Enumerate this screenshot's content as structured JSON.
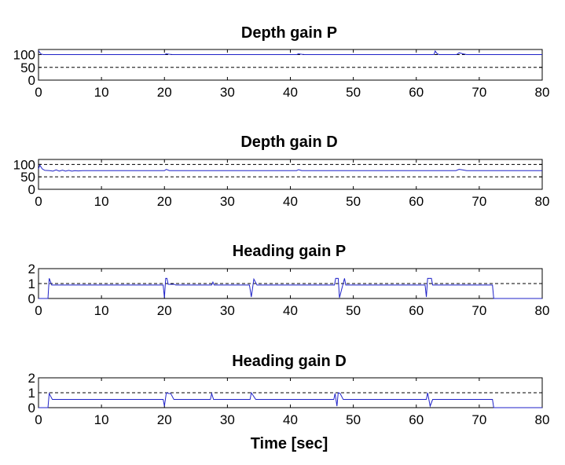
{
  "colors": {
    "series": "#1f22c8",
    "axes": "#000000",
    "background": "#ffffff"
  },
  "xlabel": "Time [sec]",
  "chart_data": [
    {
      "type": "line",
      "title": "Depth gain P",
      "xlim": [
        0,
        80
      ],
      "ylim": [
        0,
        120
      ],
      "xticks": [
        0,
        10,
        20,
        30,
        40,
        50,
        60,
        70,
        80
      ],
      "yticks": [
        0,
        50,
        100
      ],
      "ytick_labels": [
        "0",
        "50",
        "100"
      ],
      "ygrid": [
        50,
        100
      ],
      "xlabel": "",
      "series": [
        {
          "x": [
            0,
            0.15,
            0.4,
            0.8,
            1.2,
            20.0,
            20.3,
            20.8,
            21.3,
            41.0,
            41.3,
            41.8,
            42.3,
            62.8,
            63.0,
            63.3,
            63.6,
            64.5,
            66.4,
            66.8,
            67.4,
            68.0,
            80
          ],
          "y": [
            115,
            110,
            102,
            100,
            100,
            100,
            103,
            101,
            100,
            100,
            103,
            101,
            100,
            100,
            114,
            104,
            100,
            100,
            100,
            107,
            103,
            100,
            100
          ]
        }
      ]
    },
    {
      "type": "line",
      "title": "Depth gain D",
      "xlim": [
        0,
        80
      ],
      "ylim": [
        0,
        120
      ],
      "xticks": [
        0,
        10,
        20,
        30,
        40,
        50,
        60,
        70,
        80
      ],
      "yticks": [
        0,
        50,
        100
      ],
      "ytick_labels": [
        "0",
        "50",
        "100"
      ],
      "ygrid": [
        50,
        100
      ],
      "xlabel": "",
      "series": [
        {
          "x": [
            0,
            0.2,
            0.6,
            1.0,
            1.8,
            2.3,
            2.8,
            3.3,
            3.8,
            4.3,
            4.8,
            5.3,
            5.8,
            6.3,
            7.0,
            10.0,
            20.0,
            20.3,
            20.8,
            41.0,
            41.3,
            41.8,
            66.3,
            66.8,
            67.3,
            68.0,
            80
          ],
          "y": [
            82,
            97,
            82,
            76,
            75,
            73,
            78,
            73,
            77,
            73,
            76,
            73,
            75,
            74,
            75,
            75,
            75,
            80,
            75,
            75,
            79,
            75,
            75,
            80,
            78,
            75,
            75
          ]
        }
      ]
    },
    {
      "type": "line",
      "title": "Heading gain P",
      "xlim": [
        0,
        80
      ],
      "ylim": [
        0,
        2
      ],
      "xticks": [
        0,
        10,
        20,
        30,
        40,
        50,
        60,
        70,
        80
      ],
      "yticks": [
        0,
        1,
        2
      ],
      "ytick_labels": [
        "0",
        "1",
        "2"
      ],
      "ygrid": [
        1,
        2
      ],
      "xlabel": "",
      "series": [
        {
          "x": [
            0,
            1.5,
            1.7,
            2.1,
            19.8,
            20.0,
            20.2,
            20.4,
            20.6,
            21.6,
            21.8,
            27.5,
            27.7,
            27.9,
            33.5,
            33.8,
            34.2,
            34.7,
            47.0,
            47.2,
            47.6,
            47.8,
            48.6,
            48.8,
            61.4,
            61.6,
            61.8,
            62.4,
            62.6,
            72.1,
            72.3,
            80
          ],
          "y": [
            0,
            0,
            1.35,
            0.9,
            0.9,
            0.05,
            1.35,
            1.35,
            0.95,
            0.95,
            0.9,
            0.9,
            1.1,
            0.9,
            0.9,
            0.1,
            1.3,
            0.9,
            0.9,
            1.35,
            1.35,
            0.05,
            1.35,
            0.9,
            0.9,
            0.1,
            1.35,
            1.35,
            0.9,
            0.9,
            0,
            0
          ]
        }
      ]
    },
    {
      "type": "line",
      "title": "Heading gain D",
      "xlim": [
        0,
        80
      ],
      "ylim": [
        0,
        2
      ],
      "xticks": [
        0,
        10,
        20,
        30,
        40,
        50,
        60,
        70,
        80
      ],
      "yticks": [
        0,
        1,
        2
      ],
      "ytick_labels": [
        "0",
        "1",
        "2"
      ],
      "ygrid": [
        1,
        2
      ],
      "xlabel": "Time [sec]",
      "series": [
        {
          "x": [
            0,
            1.5,
            1.7,
            2.2,
            19.8,
            20.0,
            20.3,
            20.7,
            21.0,
            21.5,
            27.3,
            27.5,
            27.8,
            33.6,
            33.8,
            34.5,
            46.9,
            47.1,
            47.4,
            47.6,
            47.9,
            48.4,
            61.6,
            61.8,
            62.2,
            62.6,
            72.1,
            72.3,
            80
          ],
          "y": [
            0,
            0,
            0.95,
            0.55,
            0.55,
            0.1,
            1.0,
            0.95,
            0.95,
            0.55,
            0.55,
            0.95,
            0.55,
            0.55,
            1.0,
            0.55,
            0.55,
            0.95,
            0.1,
            1.0,
            0.95,
            0.55,
            0.55,
            1.0,
            0.1,
            0.55,
            0.55,
            0,
            0
          ]
        }
      ]
    }
  ]
}
